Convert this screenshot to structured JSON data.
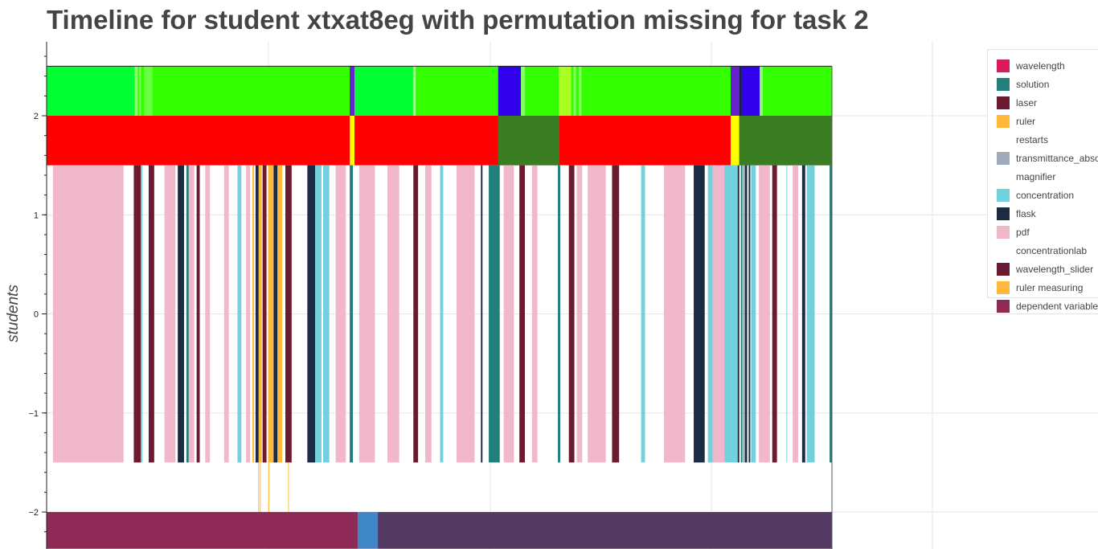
{
  "chart_data": {
    "type": "timeline",
    "title": "Timeline for student xtxat8eg with permutation missing for task 2",
    "ylabel": "students",
    "y_ticks": [
      {
        "value": 2,
        "label": "2"
      },
      {
        "value": 1,
        "label": "1"
      },
      {
        "value": 0,
        "label": "0"
      },
      {
        "value": -1,
        "label": "−1"
      },
      {
        "value": -2,
        "label": "−2"
      }
    ],
    "ylim": [
      -2.37,
      2.8
    ],
    "x_range": [
      0,
      1
    ],
    "legend": [
      {
        "label": "wavelength",
        "color": "#D81B60"
      },
      {
        "label": "solution",
        "color": "#217F7C"
      },
      {
        "label": "laser",
        "color": "#6B1A30"
      },
      {
        "label": "ruler",
        "color": "#FFB83A"
      },
      {
        "label": "restarts",
        "color": "#FFFFFF"
      },
      {
        "label": "transmittance_absorbance",
        "color": "#9FABBF"
      },
      {
        "label": "magnifier",
        "color": "#FFFFFF"
      },
      {
        "label": "concentration",
        "color": "#74D0DD"
      },
      {
        "label": "flask",
        "color": "#1C2B44"
      },
      {
        "label": "pdf",
        "color": "#F0B8CA"
      },
      {
        "label": "concentrationlab",
        "color": "#FFFFFF"
      },
      {
        "label": "wavelength_slider",
        "color": "#6B1A30"
      },
      {
        "label": "ruler measuring",
        "color": "#FFB83A"
      },
      {
        "label": "dependent variable",
        "color": "#8E2A55"
      }
    ],
    "tracks": [
      {
        "name": "top",
        "y0": 2.0,
        "y1": 2.5,
        "base_color": "#33FF00",
        "segments": [
          {
            "x0": 0.0,
            "x1": 0.112,
            "color": "#00FF33"
          },
          {
            "x0": 0.112,
            "x1": 0.116,
            "color": "#88FF66"
          },
          {
            "x0": 0.118,
            "x1": 0.12,
            "color": "#88FF66"
          },
          {
            "x0": 0.124,
            "x1": 0.135,
            "color": "#66FF44"
          },
          {
            "x0": 0.386,
            "x1": 0.392,
            "color": "#6622CC"
          },
          {
            "x0": 0.392,
            "x1": 0.466,
            "color": "#00FF33"
          },
          {
            "x0": 0.467,
            "x1": 0.47,
            "color": "#99FF88"
          },
          {
            "x0": 0.575,
            "x1": 0.604,
            "color": "#3300EE"
          },
          {
            "x0": 0.604,
            "x1": 0.609,
            "color": "#88FF66"
          },
          {
            "x0": 0.652,
            "x1": 0.668,
            "color": "#AAFF22"
          },
          {
            "x0": 0.671,
            "x1": 0.674,
            "color": "#88FF66"
          },
          {
            "x0": 0.678,
            "x1": 0.681,
            "color": "#88FF66"
          },
          {
            "x0": 0.871,
            "x1": 0.882,
            "color": "#6622CC"
          },
          {
            "x0": 0.882,
            "x1": 0.885,
            "color": "#1C1C44"
          },
          {
            "x0": 0.885,
            "x1": 0.908,
            "color": "#3300EE"
          },
          {
            "x0": 0.908,
            "x1": 0.912,
            "color": "#88FF66"
          }
        ]
      },
      {
        "name": "middle",
        "y0": 1.5,
        "y1": 2.0,
        "base_color": "#FF0000",
        "segments": [
          {
            "x0": 0.386,
            "x1": 0.392,
            "color": "#FFFF00"
          },
          {
            "x0": 0.575,
            "x1": 0.653,
            "color": "#3A7D22"
          },
          {
            "x0": 0.871,
            "x1": 0.882,
            "color": "#FFFF00"
          },
          {
            "x0": 0.882,
            "x1": 1.0,
            "color": "#3A7D22"
          }
        ]
      },
      {
        "name": "actions",
        "y0": -1.5,
        "y1": 1.5,
        "base_color": "#FFFFFF",
        "segments": [
          {
            "x0": 0.008,
            "x1": 0.098,
            "color": "#F0B8CA"
          },
          {
            "x0": 0.111,
            "x1": 0.12,
            "color": "#6B1A30"
          },
          {
            "x0": 0.12,
            "x1": 0.122,
            "color": "#74D0DD"
          },
          {
            "x0": 0.13,
            "x1": 0.137,
            "color": "#6B1A30"
          },
          {
            "x0": 0.15,
            "x1": 0.164,
            "color": "#F0B8CA"
          },
          {
            "x0": 0.167,
            "x1": 0.175,
            "color": "#1C2B44"
          },
          {
            "x0": 0.178,
            "x1": 0.181,
            "color": "#217F7C"
          },
          {
            "x0": 0.181,
            "x1": 0.188,
            "color": "#F0B8CA"
          },
          {
            "x0": 0.191,
            "x1": 0.195,
            "color": "#6B1A30"
          },
          {
            "x0": 0.202,
            "x1": 0.208,
            "color": "#F0B8CA"
          },
          {
            "x0": 0.226,
            "x1": 0.232,
            "color": "#F0B8CA"
          },
          {
            "x0": 0.243,
            "x1": 0.248,
            "color": "#74D0DD"
          },
          {
            "x0": 0.254,
            "x1": 0.259,
            "color": "#F0B8CA"
          },
          {
            "x0": 0.262,
            "x1": 0.264,
            "color": "#FFB83A"
          },
          {
            "x0": 0.266,
            "x1": 0.27,
            "color": "#1C2B44"
          },
          {
            "x0": 0.27,
            "x1": 0.274,
            "color": "#FFB83A"
          },
          {
            "x0": 0.275,
            "x1": 0.28,
            "color": "#6B1A30"
          },
          {
            "x0": 0.282,
            "x1": 0.289,
            "color": "#FFB83A"
          },
          {
            "x0": 0.289,
            "x1": 0.294,
            "color": "#1C2B44"
          },
          {
            "x0": 0.294,
            "x1": 0.3,
            "color": "#FFB83A"
          },
          {
            "x0": 0.304,
            "x1": 0.312,
            "color": "#6B1A30"
          },
          {
            "x0": 0.332,
            "x1": 0.342,
            "color": "#1C2B44"
          },
          {
            "x0": 0.342,
            "x1": 0.35,
            "color": "#74D0DD"
          },
          {
            "x0": 0.352,
            "x1": 0.36,
            "color": "#74D0DD"
          },
          {
            "x0": 0.368,
            "x1": 0.381,
            "color": "#F0B8CA"
          },
          {
            "x0": 0.386,
            "x1": 0.39,
            "color": "#217F7C"
          },
          {
            "x0": 0.398,
            "x1": 0.418,
            "color": "#F0B8CA"
          },
          {
            "x0": 0.434,
            "x1": 0.449,
            "color": "#F0B8CA"
          },
          {
            "x0": 0.467,
            "x1": 0.473,
            "color": "#6B1A30"
          },
          {
            "x0": 0.482,
            "x1": 0.49,
            "color": "#F0B8CA"
          },
          {
            "x0": 0.501,
            "x1": 0.505,
            "color": "#74D0DD"
          },
          {
            "x0": 0.522,
            "x1": 0.545,
            "color": "#F0B8CA"
          },
          {
            "x0": 0.553,
            "x1": 0.555,
            "color": "#1C2B44"
          },
          {
            "x0": 0.563,
            "x1": 0.577,
            "color": "#217F7C"
          },
          {
            "x0": 0.582,
            "x1": 0.595,
            "color": "#F0B8CA"
          },
          {
            "x0": 0.602,
            "x1": 0.609,
            "color": "#6B1A30"
          },
          {
            "x0": 0.618,
            "x1": 0.625,
            "color": "#F0B8CA"
          },
          {
            "x0": 0.651,
            "x1": 0.654,
            "color": "#217F7C"
          },
          {
            "x0": 0.665,
            "x1": 0.672,
            "color": "#6B1A30"
          },
          {
            "x0": 0.675,
            "x1": 0.682,
            "color": "#F0B8CA"
          },
          {
            "x0": 0.689,
            "x1": 0.712,
            "color": "#F0B8CA"
          },
          {
            "x0": 0.72,
            "x1": 0.729,
            "color": "#6B1A30"
          },
          {
            "x0": 0.757,
            "x1": 0.762,
            "color": "#74D0DD"
          },
          {
            "x0": 0.786,
            "x1": 0.813,
            "color": "#F0B8CA"
          },
          {
            "x0": 0.824,
            "x1": 0.838,
            "color": "#1C2B44"
          },
          {
            "x0": 0.842,
            "x1": 0.848,
            "color": "#74D0DD"
          },
          {
            "x0": 0.848,
            "x1": 0.863,
            "color": "#F0B8CA"
          },
          {
            "x0": 0.863,
            "x1": 0.88,
            "color": "#74D0DD"
          },
          {
            "x0": 0.88,
            "x1": 0.882,
            "color": "#1C2B44"
          },
          {
            "x0": 0.884,
            "x1": 0.886,
            "color": "#217F7C"
          },
          {
            "x0": 0.887,
            "x1": 0.888,
            "color": "#217F7C"
          },
          {
            "x0": 0.889,
            "x1": 0.892,
            "color": "#1C2B44"
          },
          {
            "x0": 0.894,
            "x1": 0.896,
            "color": "#1C2B44"
          },
          {
            "x0": 0.897,
            "x1": 0.903,
            "color": "#74D0DD"
          },
          {
            "x0": 0.907,
            "x1": 0.921,
            "color": "#F0B8CA"
          },
          {
            "x0": 0.924,
            "x1": 0.93,
            "color": "#6B1A30"
          },
          {
            "x0": 0.942,
            "x1": 0.943,
            "color": "#74D0DD"
          },
          {
            "x0": 0.95,
            "x1": 0.957,
            "color": "#F0B8CA"
          },
          {
            "x0": 0.962,
            "x1": 0.966,
            "color": "#1C2B44"
          },
          {
            "x0": 0.968,
            "x1": 0.978,
            "color": "#74D0DD"
          },
          {
            "x0": 0.997,
            "x1": 1.0,
            "color": "#217F7C"
          }
        ]
      },
      {
        "name": "bottom",
        "y0": -2.37,
        "y1": -2.0,
        "base_color": "#8E2A55",
        "segments": [
          {
            "x0": 0.0,
            "x1": 0.396,
            "color": "#8E2A55"
          },
          {
            "x0": 0.396,
            "x1": 0.422,
            "color": "#3E86C6"
          },
          {
            "x0": 0.422,
            "x1": 1.0,
            "color": "#523A62"
          }
        ]
      }
    ],
    "thin_lines": [
      {
        "x": 0.27,
        "y0": -2.0,
        "y1": -1.5,
        "color": "#FFB83A"
      },
      {
        "x": 0.272,
        "y0": -2.0,
        "y1": -1.5,
        "color": "#FFB83A"
      },
      {
        "x": 0.283,
        "y0": -2.0,
        "y1": -1.5,
        "color": "#FFB83A"
      },
      {
        "x": 0.308,
        "y0": -2.0,
        "y1": -1.5,
        "color": "#FFB83A"
      }
    ]
  }
}
